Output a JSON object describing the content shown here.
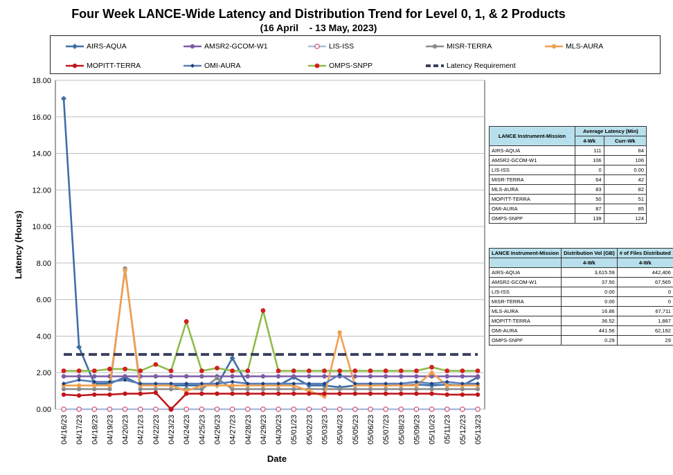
{
  "title": "Four Week LANCE-Wide Latency and Distribution Trend for Level 0, 1, & 2 Products",
  "subtitle": "(16 April    - 13 May, 2023)",
  "chart_data": {
    "type": "line",
    "xlabel": "Date",
    "ylabel": "Latency (Hours)",
    "ylim": [
      0,
      18
    ],
    "yticks": [
      "0.00",
      "2.00",
      "4.00",
      "6.00",
      "8.00",
      "10.00",
      "12.00",
      "14.00",
      "16.00",
      "18.00"
    ],
    "grid": "horizontal",
    "legend_position": "top",
    "categories": [
      "04/16/23",
      "04/17/23",
      "04/18/23",
      "04/19/23",
      "04/20/23",
      "04/21/23",
      "04/22/23",
      "04/23/23",
      "04/24/23",
      "04/25/23",
      "04/26/23",
      "04/27/23",
      "04/28/23",
      "04/29/23",
      "04/30/23",
      "05/01/23",
      "05/02/23",
      "05/03/23",
      "05/04/23",
      "05/05/23",
      "05/06/23",
      "05/07/23",
      "05/08/23",
      "05/09/23",
      "05/10/23",
      "05/11/23",
      "05/12/23",
      "05/13/23"
    ],
    "series": [
      {
        "name": "AIRS-AQUA",
        "color": "#3e6ea6",
        "marker": "diamond",
        "values": [
          17.0,
          3.4,
          1.4,
          1.4,
          1.75,
          1.35,
          1.3,
          1.3,
          1.3,
          1.3,
          1.3,
          2.8,
          1.3,
          1.3,
          1.3,
          1.75,
          1.3,
          1.3,
          1.2,
          1.3,
          1.3,
          1.3,
          1.3,
          1.35,
          1.3,
          1.35,
          1.3,
          1.75
        ]
      },
      {
        "name": "AMSR2-GCOM-W1",
        "color": "#7b5ba4",
        "marker": "circle",
        "values": [
          1.8,
          1.8,
          1.8,
          1.8,
          1.8,
          1.8,
          1.8,
          1.8,
          1.8,
          1.8,
          1.8,
          1.8,
          1.8,
          1.8,
          1.8,
          1.8,
          1.8,
          1.8,
          1.8,
          1.8,
          1.8,
          1.8,
          1.8,
          1.8,
          1.8,
          1.8,
          1.8,
          1.8
        ]
      },
      {
        "name": "LIS-ISS",
        "color": "#a9bde0",
        "marker": "circle-open",
        "values": [
          0,
          0,
          0,
          0,
          0,
          0,
          0,
          0,
          0,
          0,
          0,
          0,
          0,
          0,
          0,
          0,
          0,
          0,
          0,
          0,
          0,
          0,
          0,
          0,
          0,
          0,
          0,
          0
        ]
      },
      {
        "name": "MISR-TERRA",
        "color": "#8b8b8b",
        "marker": "circle",
        "values": [
          1.1,
          1.1,
          1.1,
          1.1,
          7.7,
          1.1,
          1.1,
          1.1,
          1.1,
          1.1,
          1.7,
          1.1,
          1.1,
          1.1,
          1.1,
          1.1,
          1.1,
          1.1,
          1.1,
          1.1,
          1.1,
          1.1,
          1.1,
          1.1,
          1.1,
          1.1,
          1.1,
          1.1
        ]
      },
      {
        "name": "MLS-AURA",
        "color": "#f0a050",
        "marker": "circle",
        "values": [
          1.3,
          1.3,
          1.3,
          1.3,
          7.6,
          1.3,
          1.3,
          1.3,
          1.0,
          1.3,
          1.3,
          1.3,
          1.3,
          1.3,
          1.3,
          1.3,
          1.0,
          0.7,
          4.2,
          1.3,
          1.3,
          1.3,
          1.3,
          1.3,
          2.0,
          1.3,
          1.3,
          1.3
        ]
      },
      {
        "name": "MOPITT-TERRA",
        "color": "#c0161b",
        "marker": "circle",
        "values": [
          0.8,
          0.75,
          0.8,
          0.8,
          0.85,
          0.85,
          0.9,
          0.0,
          0.85,
          0.85,
          0.85,
          0.85,
          0.85,
          0.85,
          0.85,
          0.85,
          0.85,
          0.85,
          0.85,
          0.85,
          0.85,
          0.85,
          0.85,
          0.85,
          0.85,
          0.8,
          0.8,
          0.8
        ]
      },
      {
        "name": "OMI-AURA",
        "color": "#5a7fb8",
        "marker": "diamond-small",
        "values": [
          1.4,
          1.6,
          1.5,
          1.5,
          1.6,
          1.4,
          1.4,
          1.4,
          1.4,
          1.4,
          1.4,
          1.5,
          1.4,
          1.4,
          1.4,
          1.4,
          1.4,
          1.4,
          1.9,
          1.4,
          1.4,
          1.4,
          1.4,
          1.5,
          1.4,
          1.5,
          1.4,
          1.4
        ]
      },
      {
        "name": "OMPS-SNPP",
        "color": "#8dbb4a",
        "marker": "circle-red",
        "values": [
          2.1,
          2.1,
          2.1,
          2.2,
          2.2,
          2.1,
          2.45,
          2.1,
          4.8,
          2.1,
          2.25,
          2.1,
          2.1,
          5.4,
          2.1,
          2.1,
          2.1,
          2.1,
          2.1,
          2.1,
          2.1,
          2.1,
          2.1,
          2.1,
          2.3,
          2.1,
          2.1,
          2.1
        ]
      },
      {
        "name": "Latency Requirement",
        "color": "#3a3f5c",
        "marker": "none",
        "dashed": true,
        "values": [
          3,
          3,
          3,
          3,
          3,
          3,
          3,
          3,
          3,
          3,
          3,
          3,
          3,
          3,
          3,
          3,
          3,
          3,
          3,
          3,
          3,
          3,
          3,
          3,
          3,
          3,
          3,
          3
        ]
      }
    ]
  },
  "latency_table": {
    "header_col1": "LANCE Instrument-Mission",
    "header_group": "Average Latency (Min)",
    "sub_headers": [
      "4-Wk",
      "Curr-Wk"
    ],
    "rows": [
      {
        "name": "AIRS-AQUA",
        "v1": "111",
        "v2": "84"
      },
      {
        "name": "AMSR2-GCOM-W1",
        "v1": "106",
        "v2": "106"
      },
      {
        "name": "LIS-ISS",
        "v1": "0",
        "v2": "0.00"
      },
      {
        "name": "MISR-TERRA",
        "v1": "64",
        "v2": "42"
      },
      {
        "name": "MLS-AURA",
        "v1": "83",
        "v2": "82"
      },
      {
        "name": "MOPITT-TERRA",
        "v1": "50",
        "v2": "51"
      },
      {
        "name": "OMI-AURA",
        "v1": "87",
        "v2": "85"
      },
      {
        "name": "OMPS-SNPP",
        "v1": "139",
        "v2": "124"
      }
    ]
  },
  "distribution_table": {
    "header_col1": "LANCE Instrument-Mission",
    "header_col2": "Distribution Vol (GB)",
    "header_col3": "# of Files Distributed",
    "sub_headers": [
      "4-Wk",
      "4-Wk"
    ],
    "rows": [
      {
        "name": "AIRS-AQUA",
        "v1": "3,615.59",
        "v2": "442,406"
      },
      {
        "name": "AMSR2-GCOM-W1",
        "v1": "37.50",
        "v2": "67,565"
      },
      {
        "name": "LIS-ISS",
        "v1": "0.00",
        "v2": "0"
      },
      {
        "name": "MISR-TERRA",
        "v1": "0.00",
        "v2": "0"
      },
      {
        "name": "MLS-AURA",
        "v1": "16.86",
        "v2": "67,711"
      },
      {
        "name": "MOPITT-TERRA",
        "v1": "36.52",
        "v2": "1,887"
      },
      {
        "name": "OMI-AURA",
        "v1": "441.56",
        "v2": "62,192"
      },
      {
        "name": "OMPS-SNPP",
        "v1": "0.29",
        "v2": "29"
      }
    ]
  }
}
